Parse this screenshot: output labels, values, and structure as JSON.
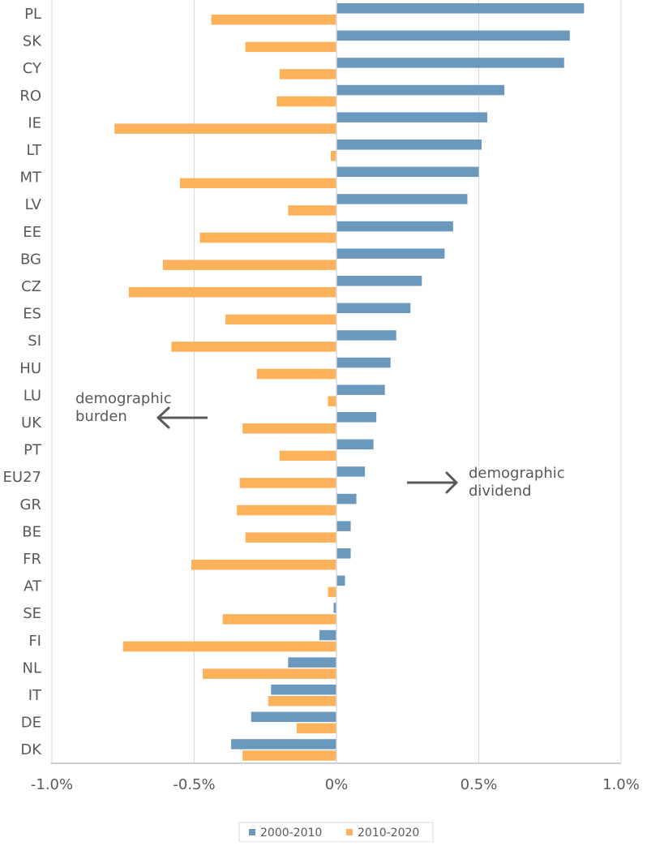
{
  "chart_data": {
    "type": "bar",
    "orientation": "horizontal",
    "categories": [
      "PL",
      "SK",
      "CY",
      "RO",
      "IE",
      "LT",
      "MT",
      "LV",
      "EE",
      "BG",
      "CZ",
      "ES",
      "SI",
      "HU",
      "LU",
      "UK",
      "PT",
      "EU27",
      "GR",
      "BE",
      "FR",
      "AT",
      "SE",
      "FI",
      "NL",
      "IT",
      "DE",
      "DK"
    ],
    "series": [
      {
        "name": "2000-2010",
        "color": "#6a99bd",
        "values": [
          0.87,
          0.82,
          0.8,
          0.59,
          0.53,
          0.51,
          0.5,
          0.46,
          0.41,
          0.38,
          0.3,
          0.26,
          0.21,
          0.19,
          0.17,
          0.14,
          0.13,
          0.1,
          0.07,
          0.05,
          0.05,
          0.03,
          -0.01,
          -0.06,
          -0.17,
          -0.23,
          -0.3,
          -0.37
        ]
      },
      {
        "name": "2010-2020",
        "color": "#fbb25a",
        "values": [
          -0.44,
          -0.32,
          -0.2,
          -0.21,
          -0.78,
          -0.02,
          -0.55,
          -0.17,
          -0.48,
          -0.61,
          -0.73,
          -0.39,
          -0.58,
          -0.28,
          -0.03,
          -0.33,
          -0.2,
          -0.34,
          -0.35,
          -0.32,
          -0.51,
          -0.03,
          -0.4,
          -0.75,
          -0.47,
          -0.24,
          -0.14,
          -0.33
        ]
      }
    ],
    "xlim": [
      -1.0,
      1.0
    ],
    "xticks": [
      -1.0,
      -0.5,
      0,
      0.5,
      1.0
    ],
    "xtick_labels": [
      "-1.0%",
      "-0.5%",
      "0%",
      "0.5%",
      "1.0%"
    ],
    "grid": "vertical",
    "legend_position": "bottom",
    "annotations": [
      {
        "id": "burden",
        "lines": [
          "demographic",
          "burden"
        ],
        "arrow": "left"
      },
      {
        "id": "dividend",
        "lines": [
          "demographic",
          "dividend"
        ],
        "arrow": "right"
      }
    ]
  }
}
